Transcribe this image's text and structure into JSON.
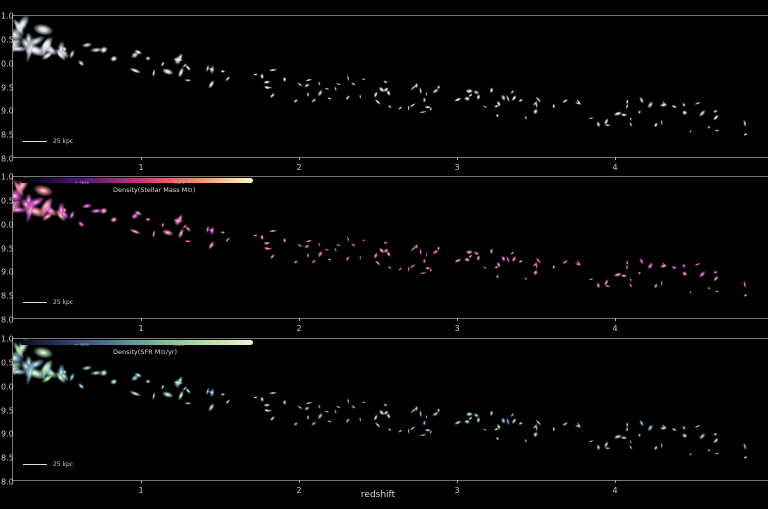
{
  "chart_data": {
    "type": "scatter",
    "xlabel": "redshift",
    "x_ticks": [
      "1",
      "2",
      "3",
      "4"
    ],
    "y_ticks": [
      "1.0",
      "0.5",
      "0.0",
      "9.5",
      "9.0",
      "8.5",
      "8.0"
    ],
    "xlim": [
      0.1,
      4.9
    ],
    "grid": false,
    "scale_bar": "25 kpc",
    "panels": [
      {
        "name": "optical",
        "colorbar": null,
        "colors": [
          "#b8c4d0",
          "#e8eef4"
        ]
      },
      {
        "name": "stellar-mass",
        "colorbar": {
          "label": "Density(Stellar Mass M⊙)",
          "less": "← less",
          "more": "more →",
          "colormap": [
            "#000004",
            "#51127c",
            "#b73779",
            "#fc8961",
            "#fcfdbf"
          ]
        },
        "colors": [
          "#d65ad0",
          "#f08aa8"
        ]
      },
      {
        "name": "sfr",
        "colorbar": {
          "label": "Density(SFR M⊙/yr)",
          "less": "← less",
          "more": "more →",
          "colormap": [
            "#0b0b1e",
            "#3a4a7a",
            "#5fa09a",
            "#a8d8a0",
            "#f4f0d0"
          ]
        },
        "colors": [
          "#7fb0c8",
          "#a8e0b0"
        ]
      }
    ],
    "trend": {
      "description_units": "y tick units",
      "x": [
        0.2,
        1.0,
        2.0,
        3.0,
        4.0,
        4.8
      ],
      "y": [
        10.6,
        10.0,
        9.5,
        9.2,
        9.0,
        8.8
      ]
    }
  }
}
